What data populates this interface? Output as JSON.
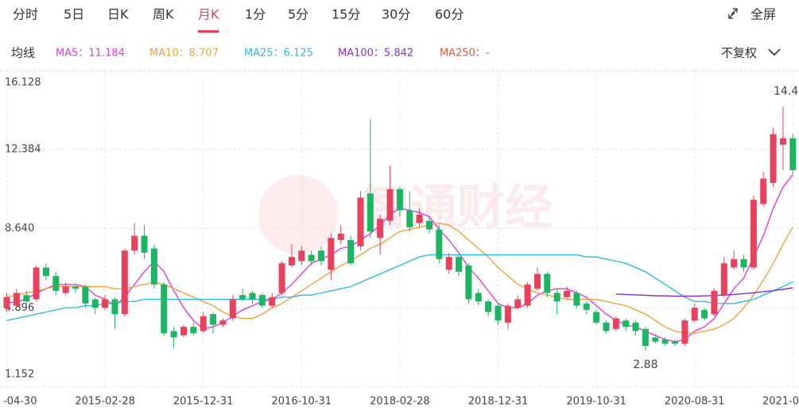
{
  "toolbar": {
    "tabs": [
      "分时",
      "5日",
      "日K",
      "周K",
      "月K",
      "1分",
      "5分",
      "15分",
      "30分",
      "60分"
    ],
    "active_tab": 4,
    "fullscreen": "全屏",
    "ma_label": "均线",
    "adjust": "不复权"
  },
  "chart_data": {
    "type": "candlestick",
    "watermark": "智通财经",
    "categories": [
      "-04-30",
      null,
      null,
      null,
      null,
      null,
      null,
      null,
      null,
      null,
      "2015-02-28",
      null,
      null,
      null,
      null,
      null,
      null,
      null,
      null,
      null,
      "2015-12-31",
      null,
      null,
      null,
      null,
      null,
      null,
      null,
      null,
      null,
      "2016-10-31",
      null,
      null,
      null,
      null,
      null,
      null,
      null,
      null,
      null,
      "2018-02-28",
      null,
      null,
      null,
      null,
      null,
      null,
      null,
      null,
      null,
      "2018-12-31",
      null,
      null,
      null,
      null,
      null,
      null,
      null,
      null,
      null,
      "2019-10-31",
      null,
      null,
      null,
      null,
      null,
      null,
      null,
      null,
      null,
      "2020-08-31",
      null,
      null,
      null,
      null,
      null,
      null,
      null,
      null,
      null,
      "2021-0"
    ],
    "up_color": "#e8415c",
    "down_color": "#1db464",
    "open": [
      4.9,
      5.0,
      5.5,
      5.3,
      6.8,
      6.4,
      5.6,
      5.9,
      5.9,
      5.3,
      4.9,
      5.3,
      4.6,
      7.6,
      8.3,
      7.7,
      6.0,
      3.8,
      3.6,
      4.0,
      3.8,
      4.6,
      4.1,
      4.4,
      5.5,
      5.6,
      5.5,
      5.0,
      5.6,
      6.9,
      7.1,
      7.4,
      7.6,
      6.7,
      8.1,
      8.1,
      7.8,
      10.3,
      8.2,
      9.0,
      10.5,
      9.5,
      8.9,
      9.0,
      8.6,
      6.7,
      7.3,
      6.9,
      5.6,
      5.2,
      5.0,
      4.2,
      4.9,
      5.0,
      5.8,
      6.5,
      5.6,
      5.4,
      5.6,
      5.1,
      4.7,
      4.2,
      3.9,
      4.3,
      4.2,
      3.9,
      3.5,
      3.4,
      3.3,
      3.2,
      4.3,
      4.8,
      4.6,
      5.5,
      6.8,
      7.2,
      6.8,
      9.8,
      10.8,
      12.6,
      12.9
    ],
    "high": [
      5.6,
      5.8,
      5.7,
      6.9,
      7.0,
      6.6,
      6.1,
      6.0,
      6.0,
      5.4,
      5.5,
      5.4,
      7.7,
      8.9,
      8.8,
      7.9,
      6.1,
      4.0,
      4.1,
      4.2,
      4.7,
      4.7,
      4.4,
      5.5,
      5.8,
      5.7,
      5.6,
      5.6,
      7.1,
      7.9,
      7.8,
      7.6,
      7.8,
      8.4,
      8.8,
      8.3,
      10.4,
      13.8,
      9.3,
      11.6,
      10.6,
      10.4,
      9.6,
      9.2,
      8.8,
      7.5,
      7.4,
      7.0,
      5.8,
      5.3,
      5.1,
      5.1,
      5.5,
      6.1,
      6.8,
      6.6,
      5.8,
      5.9,
      5.7,
      5.2,
      4.8,
      4.3,
      4.5,
      4.4,
      4.3,
      4.0,
      3.6,
      3.5,
      3.4,
      4.4,
      5.1,
      4.9,
      5.8,
      7.3,
      7.6,
      7.4,
      10.2,
      11.3,
      13.4,
      14.4,
      13.1
    ],
    "low": [
      4.7,
      4.9,
      5.0,
      5.2,
      6.2,
      5.5,
      5.5,
      5.6,
      4.9,
      4.6,
      4.8,
      3.9,
      4.5,
      7.4,
      7.2,
      5.8,
      3.6,
      3.0,
      3.5,
      3.6,
      3.7,
      3.7,
      4.0,
      4.3,
      5.2,
      5.1,
      4.9,
      4.9,
      5.5,
      6.8,
      6.9,
      6.9,
      6.9,
      6.2,
      7.9,
      6.9,
      7.6,
      8.2,
      7.4,
      8.8,
      9.2,
      8.5,
      8.7,
      8.4,
      7.0,
      6.5,
      6.4,
      5.1,
      5.0,
      4.5,
      4.1,
      3.9,
      4.8,
      4.9,
      5.7,
      5.4,
      4.6,
      5.3,
      4.9,
      4.6,
      4.1,
      3.7,
      3.8,
      3.8,
      3.6,
      2.88,
      3.2,
      3.1,
      3.1,
      3.1,
      4.2,
      4.3,
      4.5,
      5.4,
      6.7,
      6.6,
      6.7,
      9.7,
      10.6,
      11.4,
      11.2
    ],
    "close": [
      5.4,
      5.6,
      5.2,
      6.8,
      6.4,
      5.7,
      5.9,
      5.8,
      5.1,
      4.9,
      5.3,
      4.6,
      7.6,
      8.3,
      7.5,
      6.0,
      3.7,
      3.5,
      4.0,
      3.7,
      4.5,
      4.1,
      4.3,
      5.3,
      5.3,
      5.3,
      5.0,
      5.4,
      7.0,
      7.3,
      7.6,
      7.1,
      7.1,
      8.2,
      8.4,
      7.0,
      10.1,
      8.5,
      9.1,
      10.5,
      9.5,
      8.7,
      9.3,
      8.6,
      7.2,
      7.3,
      6.6,
      5.3,
      5.2,
      4.7,
      4.3,
      5.0,
      5.3,
      6.0,
      6.5,
      5.6,
      5.2,
      5.7,
      5.0,
      4.8,
      4.2,
      3.8,
      4.4,
      4.0,
      3.8,
      3.1,
      3.3,
      3.2,
      3.2,
      4.3,
      4.9,
      4.4,
      5.7,
      7.0,
      7.2,
      6.8,
      10.0,
      11.0,
      13.1,
      12.9,
      11.4
    ],
    "high_label_index": 79,
    "low_label_index": 65,
    "series": [
      {
        "name": "MA5",
        "legend": "MA5：11.184",
        "color": "#e03be0",
        "values": [
          5.1,
          5.2,
          5.3,
          5.6,
          5.8,
          6.0,
          6.0,
          6.0,
          5.9,
          5.5,
          5.3,
          5.0,
          5.4,
          6.0,
          6.6,
          7.1,
          6.6,
          5.7,
          4.9,
          4.3,
          3.9,
          4.0,
          4.2,
          4.5,
          4.8,
          5.0,
          5.2,
          5.3,
          5.6,
          6.0,
          6.5,
          7.0,
          7.2,
          7.4,
          7.7,
          7.8,
          8.1,
          8.4,
          8.8,
          9.3,
          9.6,
          9.5,
          9.4,
          9.2,
          8.6,
          8.1,
          7.5,
          6.8,
          6.3,
          5.7,
          5.1,
          4.9,
          4.9,
          5.1,
          5.5,
          5.7,
          5.8,
          5.8,
          5.6,
          5.4,
          5.0,
          4.6,
          4.3,
          4.1,
          4.0,
          3.8,
          3.6,
          3.4,
          3.3,
          3.4,
          3.8,
          4.0,
          4.4,
          5.1,
          5.8,
          6.3,
          7.3,
          8.3,
          9.6,
          10.6,
          11.184
        ]
      },
      {
        "name": "MA10",
        "legend": "MA10：8.707",
        "color": "#f5a03a",
        "values": [
          5.4,
          5.5,
          5.6,
          5.7,
          5.8,
          5.9,
          5.9,
          5.9,
          5.9,
          5.9,
          5.9,
          5.8,
          5.8,
          5.9,
          6.0,
          6.1,
          6.0,
          5.8,
          5.6,
          5.4,
          5.2,
          5.0,
          4.7,
          4.5,
          4.4,
          4.4,
          4.6,
          4.9,
          5.1,
          5.4,
          5.7,
          6.0,
          6.3,
          6.6,
          6.9,
          7.1,
          7.4,
          7.7,
          7.9,
          8.2,
          8.5,
          8.6,
          8.7,
          8.8,
          8.9,
          8.8,
          8.5,
          8.1,
          7.7,
          7.3,
          6.8,
          6.4,
          6.0,
          5.8,
          5.6,
          5.5,
          5.4,
          5.3,
          5.3,
          5.3,
          5.3,
          5.2,
          5.1,
          5.0,
          4.8,
          4.6,
          4.3,
          4.0,
          3.8,
          3.7,
          3.7,
          3.8,
          3.9,
          4.1,
          4.4,
          4.9,
          5.5,
          6.2,
          7.0,
          7.9,
          8.707
        ]
      },
      {
        "name": "MA25",
        "legend": "MA25：6.125",
        "color": "#2bbbea",
        "values": [
          4.3,
          4.4,
          4.5,
          4.6,
          4.7,
          4.8,
          4.9,
          4.9,
          5.0,
          5.0,
          5.1,
          5.1,
          5.2,
          5.2,
          5.3,
          5.3,
          5.3,
          5.3,
          5.3,
          5.3,
          5.3,
          5.3,
          5.3,
          5.3,
          5.3,
          5.3,
          5.3,
          5.3,
          5.4,
          5.4,
          5.5,
          5.5,
          5.6,
          5.7,
          5.8,
          5.9,
          6.1,
          6.3,
          6.5,
          6.7,
          6.9,
          7.1,
          7.3,
          7.4,
          7.4,
          7.4,
          7.4,
          7.4,
          7.4,
          7.4,
          7.4,
          7.4,
          7.4,
          7.4,
          7.4,
          7.4,
          7.4,
          7.4,
          7.4,
          7.3,
          7.3,
          7.2,
          7.1,
          7.0,
          6.8,
          6.6,
          6.3,
          6.0,
          5.7,
          5.4,
          5.2,
          5.2,
          5.1,
          5.1,
          5.1,
          5.2,
          5.3,
          5.5,
          5.7,
          5.9,
          6.125
        ]
      },
      {
        "name": "MA100",
        "legend": "MA100：5.842",
        "color": "#8b2be2",
        "values": [
          null,
          null,
          null,
          null,
          null,
          null,
          null,
          null,
          null,
          null,
          null,
          null,
          null,
          null,
          null,
          null,
          null,
          null,
          null,
          null,
          null,
          null,
          null,
          null,
          null,
          null,
          null,
          null,
          null,
          null,
          null,
          null,
          null,
          null,
          null,
          null,
          null,
          null,
          null,
          null,
          null,
          null,
          null,
          null,
          null,
          null,
          null,
          null,
          null,
          null,
          null,
          null,
          null,
          null,
          null,
          null,
          null,
          null,
          null,
          null,
          null,
          null,
          5.55,
          5.53,
          5.51,
          5.49,
          5.47,
          5.46,
          5.45,
          5.45,
          5.45,
          5.46,
          5.48,
          5.5,
          5.53,
          5.57,
          5.61,
          5.66,
          5.71,
          5.77,
          5.842
        ]
      },
      {
        "name": "MA250",
        "legend": "MA250：-",
        "color": "#f0522c"
      }
    ],
    "ylim": [
      1.152,
      16.128
    ],
    "yticks": [
      16.128,
      12.384,
      {
        "value": 8.64,
        "label": "8.640"
      },
      4.896,
      1.152
    ],
    "grid": true
  }
}
